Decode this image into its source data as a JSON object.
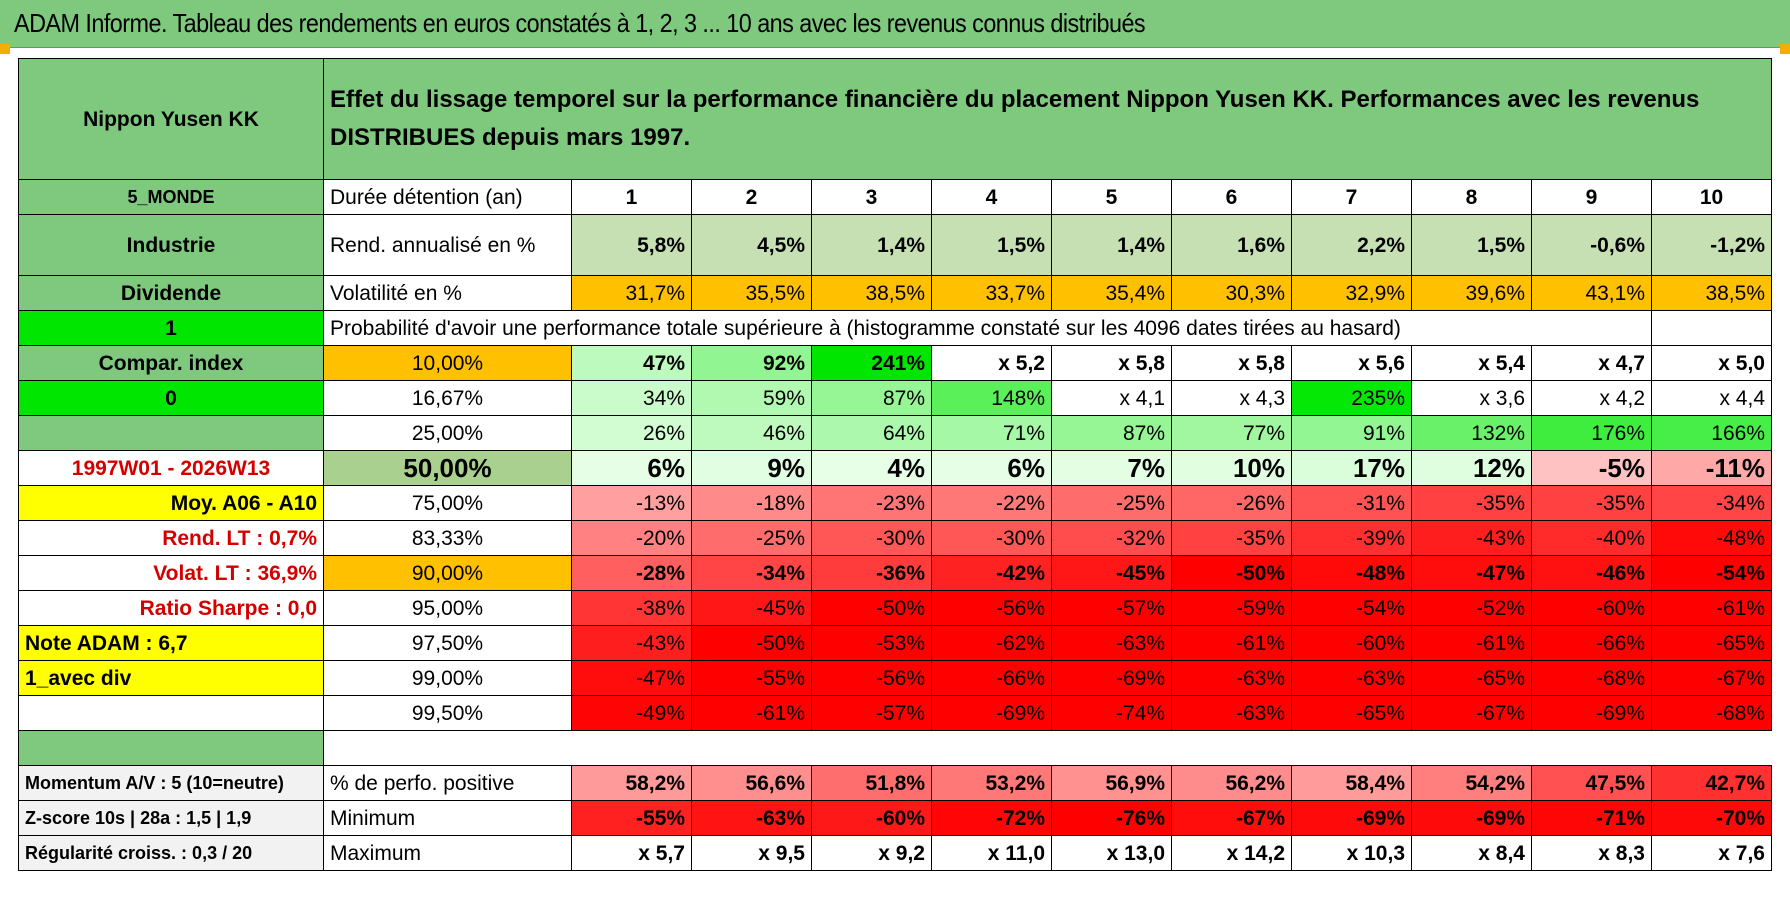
{
  "title": "ADAM Informe. Tableau des rendements en euros constatés à 1, 2, 3 ... 10 ans avec les revenus connus distribués",
  "name": "Nippon Yusen KK",
  "header_text": "Effet du lissage temporel sur la performance financière du placement Nippon Yusen KK. Performances avec les revenus DISTRIBUES depuis mars 1997.",
  "left": {
    "region": "5_MONDE",
    "sector": "Industrie",
    "dividend": "Dividende",
    "value1": "1",
    "compar": "Compar. index",
    "value0": "0",
    "period": "1997W01 - 2026W13",
    "moy": "Moy. A06 - A10",
    "rend_lt": "Rend. LT :   0,7%",
    "volat_lt": "Volat. LT :   36,9%",
    "sharpe": "Ratio Sharpe :    0,0",
    "note": "Note ADAM : 6,7",
    "avec_div": "1_avec div",
    "momentum": "Momentum A/V : 5 (10=neutre)",
    "zscore": "Z-score 10s | 28a : 1,5 | 1,9",
    "regularite": "Régularité croiss. : 0,3 / 20"
  },
  "labels": {
    "duree": "Durée détention (an)",
    "rend": "Rend. annualisé en %",
    "vol": "Volatilité en %",
    "proba": "Probabilité d'avoir une performance totale supérieure à (histogramme constaté sur les 4096 dates tirées au hasard)",
    "pos": "% de perfo. positive",
    "min": "Minimum",
    "max": "Maximum"
  },
  "years": [
    "1",
    "2",
    "3",
    "4",
    "5",
    "6",
    "7",
    "8",
    "9",
    "10"
  ],
  "rend": [
    "5,8%",
    "4,5%",
    "1,4%",
    "1,5%",
    "1,4%",
    "1,6%",
    "2,2%",
    "1,5%",
    "-0,6%",
    "-1,2%"
  ],
  "vol": [
    "31,7%",
    "35,5%",
    "38,5%",
    "33,7%",
    "35,4%",
    "30,3%",
    "32,9%",
    "39,6%",
    "43,1%",
    "38,5%"
  ],
  "prob_rows": [
    {
      "p": "10,00%",
      "v": [
        "47%",
        "92%",
        "241%",
        "x 5,2",
        "x 5,8",
        "x 5,8",
        "x 5,6",
        "x 5,4",
        "x 4,7",
        "x 5,0"
      ]
    },
    {
      "p": "16,67%",
      "v": [
        "34%",
        "59%",
        "87%",
        "148%",
        "x 4,1",
        "x 4,3",
        "235%",
        "x 3,6",
        "x 4,2",
        "x 4,4"
      ]
    },
    {
      "p": "25,00%",
      "v": [
        "26%",
        "46%",
        "64%",
        "71%",
        "87%",
        "77%",
        "91%",
        "132%",
        "176%",
        "166%"
      ]
    },
    {
      "p": "50,00%",
      "v": [
        "6%",
        "9%",
        "4%",
        "6%",
        "7%",
        "10%",
        "17%",
        "12%",
        "-5%",
        "-11%"
      ]
    },
    {
      "p": "75,00%",
      "v": [
        "-13%",
        "-18%",
        "-23%",
        "-22%",
        "-25%",
        "-26%",
        "-31%",
        "-35%",
        "-35%",
        "-34%"
      ]
    },
    {
      "p": "83,33%",
      "v": [
        "-20%",
        "-25%",
        "-30%",
        "-30%",
        "-32%",
        "-35%",
        "-39%",
        "-43%",
        "-40%",
        "-48%"
      ]
    },
    {
      "p": "90,00%",
      "v": [
        "-28%",
        "-34%",
        "-36%",
        "-42%",
        "-45%",
        "-50%",
        "-48%",
        "-47%",
        "-46%",
        "-54%"
      ]
    },
    {
      "p": "95,00%",
      "v": [
        "-38%",
        "-45%",
        "-50%",
        "-56%",
        "-57%",
        "-59%",
        "-54%",
        "-52%",
        "-60%",
        "-61%"
      ]
    },
    {
      "p": "97,50%",
      "v": [
        "-43%",
        "-50%",
        "-53%",
        "-62%",
        "-63%",
        "-61%",
        "-60%",
        "-61%",
        "-66%",
        "-65%"
      ]
    },
    {
      "p": "99,00%",
      "v": [
        "-47%",
        "-55%",
        "-56%",
        "-66%",
        "-69%",
        "-63%",
        "-63%",
        "-65%",
        "-68%",
        "-67%"
      ]
    },
    {
      "p": "99,50%",
      "v": [
        "-49%",
        "-61%",
        "-57%",
        "-69%",
        "-74%",
        "-63%",
        "-65%",
        "-67%",
        "-69%",
        "-68%"
      ]
    }
  ],
  "pos": [
    "58,2%",
    "56,6%",
    "51,8%",
    "53,2%",
    "56,9%",
    "56,2%",
    "58,4%",
    "54,2%",
    "47,5%",
    "42,7%"
  ],
  "min": [
    "-55%",
    "-63%",
    "-60%",
    "-72%",
    "-76%",
    "-67%",
    "-69%",
    "-69%",
    "-71%",
    "-70%"
  ],
  "max": [
    "x 5,7",
    "x 9,5",
    "x 9,2",
    "x 11,0",
    "x 13,0",
    "x 14,2",
    "x 10,3",
    "x 8,4",
    "x 8,3",
    "x 7,6"
  ],
  "colors": {
    "header_green": "#7fc97f",
    "bright_green": "#00e600",
    "orange": "#ffc000",
    "yellow": "#ffff00",
    "red": "#e60000"
  }
}
